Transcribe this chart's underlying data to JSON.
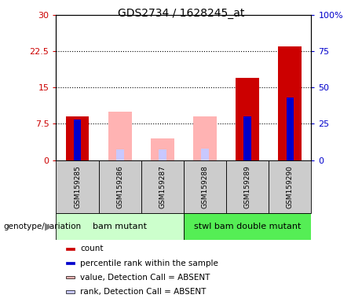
{
  "title": "GDS2734 / 1628245_at",
  "samples": [
    "GSM159285",
    "GSM159286",
    "GSM159287",
    "GSM159288",
    "GSM159289",
    "GSM159290"
  ],
  "count": [
    9.0,
    null,
    null,
    null,
    17.0,
    23.5
  ],
  "percentile_rank": [
    28.0,
    null,
    null,
    null,
    30.0,
    43.0
  ],
  "value_absent": [
    null,
    10.0,
    4.5,
    9.0,
    null,
    null
  ],
  "rank_absent": [
    null,
    7.5,
    7.2,
    7.7,
    null,
    null
  ],
  "ylim_left": [
    0,
    30
  ],
  "ylim_right": [
    0,
    100
  ],
  "yticks_left": [
    0,
    7.5,
    15,
    22.5,
    30
  ],
  "yticks_right": [
    0,
    25,
    50,
    75,
    100
  ],
  "ytick_labels_left": [
    "0",
    "7.5",
    "15",
    "22.5",
    "30"
  ],
  "ytick_labels_right": [
    "0",
    "25",
    "50",
    "75",
    "100%"
  ],
  "group1_label": "bam mutant",
  "group2_label": "stwl bam double mutant",
  "group1_indices": [
    0,
    1,
    2
  ],
  "group2_indices": [
    3,
    4,
    5
  ],
  "color_count": "#cc0000",
  "color_rank": "#0000cc",
  "color_value_absent": "#ffb3b3",
  "color_rank_absent": "#c8c8ff",
  "color_group1_bg": "#ccffcc",
  "color_group2_bg": "#55ee55",
  "color_sample_bg": "#cccccc",
  "genotype_label": "genotype/variation",
  "legend_items": [
    {
      "color": "#cc0000",
      "label": "count"
    },
    {
      "color": "#0000cc",
      "label": "percentile rank within the sample"
    },
    {
      "color": "#ffb3b3",
      "label": "value, Detection Call = ABSENT"
    },
    {
      "color": "#c8c8ff",
      "label": "rank, Detection Call = ABSENT"
    }
  ]
}
